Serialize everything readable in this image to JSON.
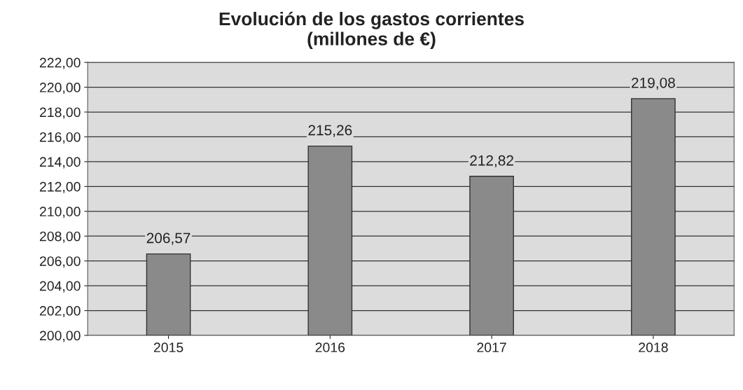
{
  "chart_data": {
    "type": "bar",
    "title": "Evolución de los gastos corrientes\n(millones de €)",
    "categories": [
      "2015",
      "2016",
      "2017",
      "2018"
    ],
    "values": [
      206.57,
      215.26,
      212.82,
      219.08
    ],
    "value_labels": [
      "206,57",
      "215,26",
      "212,82",
      "219,08"
    ],
    "color": "#8a8a8a",
    "ylim": [
      200,
      222
    ],
    "yticks": [
      {
        "value": 200,
        "label": "200,00"
      },
      {
        "value": 202,
        "label": "202,00"
      },
      {
        "value": 204,
        "label": "204,00"
      },
      {
        "value": 206,
        "label": "206,00"
      },
      {
        "value": 208,
        "label": "208,00"
      },
      {
        "value": 210,
        "label": "210,00"
      },
      {
        "value": 212,
        "label": "212,00"
      },
      {
        "value": 214,
        "label": "214,00"
      },
      {
        "value": 216,
        "label": "216,00"
      },
      {
        "value": 218,
        "label": "218,00"
      },
      {
        "value": 220,
        "label": "220,00"
      },
      {
        "value": 222,
        "label": "222,00"
      }
    ],
    "grid": "y",
    "legend": false
  }
}
